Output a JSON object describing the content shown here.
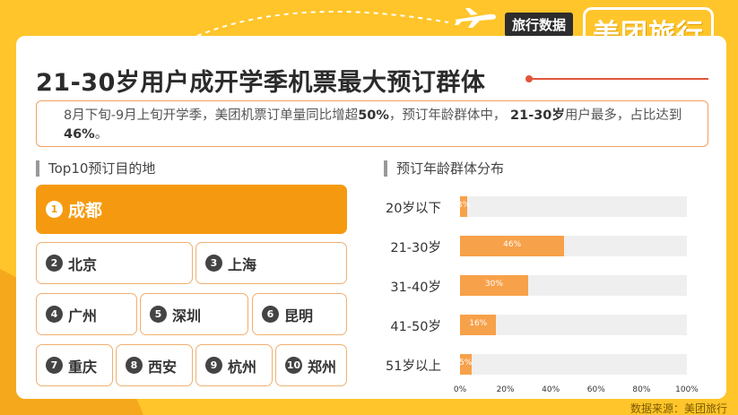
{
  "brand": {
    "tag": "旅行数据",
    "logo": "美团旅行"
  },
  "title": "21-30岁用户成开学季机票最大预订群体",
  "summary": {
    "part1": "8月下旬-9月上旬开学季，美团机票订单量同比增超",
    "bold1": "50%",
    "part2": "，预订年龄群体中，",
    "bold2": "21-30岁",
    "part3": "用户最多，占比达到",
    "bold3": "46%",
    "part4": "。"
  },
  "destinations": {
    "header": "Top10预订目的地",
    "items": [
      {
        "rank": "1",
        "city": "成都"
      },
      {
        "rank": "2",
        "city": "北京"
      },
      {
        "rank": "3",
        "city": "上海"
      },
      {
        "rank": "4",
        "city": "广州"
      },
      {
        "rank": "5",
        "city": "深圳"
      },
      {
        "rank": "6",
        "city": "昆明"
      },
      {
        "rank": "7",
        "city": "重庆"
      },
      {
        "rank": "8",
        "city": "西安"
      },
      {
        "rank": "9",
        "city": "杭州"
      },
      {
        "rank": "10",
        "city": "郑州"
      }
    ]
  },
  "chart_data": {
    "type": "bar",
    "orientation": "horizontal",
    "title": "预订年龄群体分布",
    "categories": [
      "20岁以下",
      "21-30岁",
      "31-40岁",
      "41-50岁",
      "51岁以上"
    ],
    "values": [
      3,
      46,
      30,
      16,
      5
    ],
    "value_labels": [
      "3%",
      "46%",
      "30%",
      "16%",
      "5%"
    ],
    "xlim": [
      0,
      100
    ],
    "xticks": [
      "0%",
      "20%",
      "40%",
      "60%",
      "80%",
      "100%"
    ],
    "colors": {
      "bar": "#f7a14a",
      "track": "#efefef"
    }
  },
  "source": "数据来源：美团旅行"
}
